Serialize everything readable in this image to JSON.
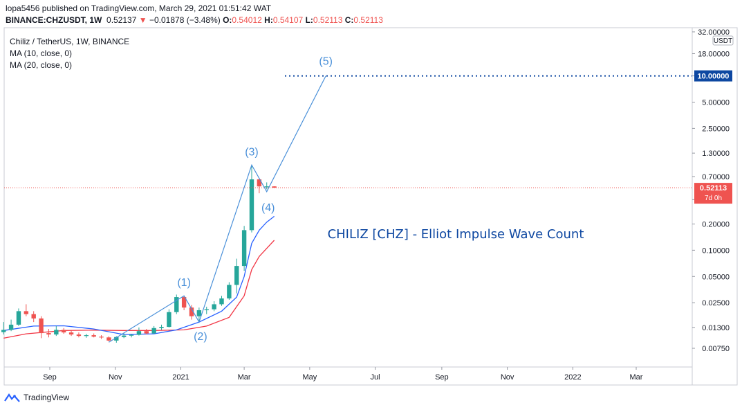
{
  "header": {
    "published": "lopa5456 published on TradingView.com, March 29, 2021 01:51:42 WAT",
    "symbol": "BINANCE:CHZUSDT, 1W",
    "last": "0.52137",
    "change": "−0.01878 (−3.48%)",
    "o_label": "O:",
    "o": "0.54012",
    "h_label": "H:",
    "h": "0.54107",
    "l_label": "L:",
    "l": "0.52113",
    "c_label": "C:",
    "c": "0.52113"
  },
  "legend": {
    "title": "Chiliz / TetherUS, 1W, BINANCE",
    "ma10": "MA (10, close, 0)",
    "ma20": "MA (20, close, 0)"
  },
  "footer": {
    "brand": "TradingView"
  },
  "colors": {
    "up": "#26a69a",
    "down": "#ef5350",
    "wave": "#4a90d9",
    "ma10": "#2962ff",
    "ma20": "#f23645",
    "annotation": "#0d47a1",
    "target": "#0d47a1"
  },
  "chart_data": {
    "type": "candlestick",
    "title": "CHILIZ [CHZ] - Elliot Impulse Wave Count",
    "scale": "log",
    "y_unit": "USDT",
    "y_ticks": [
      "32.00000",
      "18.00000",
      "10.00000",
      "5.00000",
      "2.50000",
      "1.30000",
      "0.70000",
      "0.38000",
      "0.20000",
      "0.10000",
      "0.05000",
      "0.02500",
      "0.01300",
      "0.00750"
    ],
    "x_ticks": [
      "Sep",
      "Nov",
      "2021",
      "Mar",
      "May",
      "Jul",
      "Sep",
      "Nov",
      "2022",
      "Mar"
    ],
    "x_tick_dates": [
      "2020-09-01",
      "2020-11-01",
      "2021-01-01",
      "2021-03-01",
      "2021-05-01",
      "2021-07-01",
      "2021-09-01",
      "2021-11-01",
      "2022-01-01",
      "2022-03-01"
    ],
    "candles": [
      {
        "date": "2020-07-20",
        "o": 0.0115,
        "h": 0.015,
        "l": 0.0108,
        "c": 0.0122
      },
      {
        "date": "2020-07-27",
        "o": 0.0122,
        "h": 0.016,
        "l": 0.0118,
        "c": 0.014
      },
      {
        "date": "2020-08-03",
        "o": 0.014,
        "h": 0.0215,
        "l": 0.0135,
        "c": 0.02
      },
      {
        "date": "2020-08-10",
        "o": 0.02,
        "h": 0.024,
        "l": 0.0175,
        "c": 0.0185
      },
      {
        "date": "2020-08-17",
        "o": 0.0185,
        "h": 0.02,
        "l": 0.015,
        "c": 0.0165
      },
      {
        "date": "2020-08-24",
        "o": 0.0165,
        "h": 0.0175,
        "l": 0.0098,
        "c": 0.0112
      },
      {
        "date": "2020-08-31",
        "o": 0.0112,
        "h": 0.0125,
        "l": 0.01,
        "c": 0.0108
      },
      {
        "date": "2020-09-07",
        "o": 0.0108,
        "h": 0.0135,
        "l": 0.0104,
        "c": 0.0122
      },
      {
        "date": "2020-09-14",
        "o": 0.0122,
        "h": 0.0128,
        "l": 0.011,
        "c": 0.0114
      },
      {
        "date": "2020-09-21",
        "o": 0.0114,
        "h": 0.012,
        "l": 0.0104,
        "c": 0.0108
      },
      {
        "date": "2020-09-28",
        "o": 0.0108,
        "h": 0.0114,
        "l": 0.01,
        "c": 0.0104
      },
      {
        "date": "2020-10-05",
        "o": 0.0104,
        "h": 0.011,
        "l": 0.0099,
        "c": 0.0106
      },
      {
        "date": "2020-10-12",
        "o": 0.0106,
        "h": 0.0111,
        "l": 0.01,
        "c": 0.0102
      },
      {
        "date": "2020-10-19",
        "o": 0.0102,
        "h": 0.0106,
        "l": 0.0096,
        "c": 0.01
      },
      {
        "date": "2020-10-26",
        "o": 0.01,
        "h": 0.0103,
        "l": 0.009,
        "c": 0.0092
      },
      {
        "date": "2020-11-02",
        "o": 0.0092,
        "h": 0.0103,
        "l": 0.0087,
        "c": 0.0101
      },
      {
        "date": "2020-11-09",
        "o": 0.0101,
        "h": 0.0112,
        "l": 0.0098,
        "c": 0.0105
      },
      {
        "date": "2020-11-16",
        "o": 0.0105,
        "h": 0.011,
        "l": 0.01,
        "c": 0.0107
      },
      {
        "date": "2020-11-23",
        "o": 0.0107,
        "h": 0.013,
        "l": 0.0105,
        "c": 0.0118
      },
      {
        "date": "2020-11-30",
        "o": 0.0118,
        "h": 0.0125,
        "l": 0.0108,
        "c": 0.0111
      },
      {
        "date": "2020-12-07",
        "o": 0.0111,
        "h": 0.0135,
        "l": 0.011,
        "c": 0.0128
      },
      {
        "date": "2020-12-14",
        "o": 0.0128,
        "h": 0.014,
        "l": 0.0122,
        "c": 0.0132
      },
      {
        "date": "2020-12-21",
        "o": 0.0132,
        "h": 0.021,
        "l": 0.013,
        "c": 0.0195
      },
      {
        "date": "2020-12-28",
        "o": 0.0195,
        "h": 0.031,
        "l": 0.0185,
        "c": 0.029
      },
      {
        "date": "2021-01-04",
        "o": 0.029,
        "h": 0.03,
        "l": 0.0205,
        "c": 0.022
      },
      {
        "date": "2021-01-11",
        "o": 0.022,
        "h": 0.0235,
        "l": 0.016,
        "c": 0.0175
      },
      {
        "date": "2021-01-18",
        "o": 0.0175,
        "h": 0.022,
        "l": 0.015,
        "c": 0.0205
      },
      {
        "date": "2021-01-25",
        "o": 0.0205,
        "h": 0.0225,
        "l": 0.0185,
        "c": 0.021
      },
      {
        "date": "2021-02-01",
        "o": 0.021,
        "h": 0.026,
        "l": 0.02,
        "c": 0.024
      },
      {
        "date": "2021-02-08",
        "o": 0.024,
        "h": 0.03,
        "l": 0.023,
        "c": 0.028
      },
      {
        "date": "2021-02-15",
        "o": 0.028,
        "h": 0.043,
        "l": 0.027,
        "c": 0.04
      },
      {
        "date": "2021-02-22",
        "o": 0.04,
        "h": 0.08,
        "l": 0.032,
        "c": 0.066
      },
      {
        "date": "2021-03-01",
        "o": 0.066,
        "h": 0.19,
        "l": 0.058,
        "c": 0.17
      },
      {
        "date": "2021-03-08",
        "o": 0.17,
        "h": 0.95,
        "l": 0.16,
        "c": 0.65
      },
      {
        "date": "2021-03-15",
        "o": 0.65,
        "h": 0.67,
        "l": 0.45,
        "c": 0.54
      },
      {
        "date": "2021-03-22",
        "o": 0.54,
        "h": 0.6,
        "l": 0.5,
        "c": 0.54
      },
      {
        "date": "2021-03-29",
        "o": 0.54012,
        "h": 0.54107,
        "l": 0.52113,
        "c": 0.52113
      }
    ],
    "ma10": [
      {
        "date": "2020-07-20",
        "v": 0.012
      },
      {
        "date": "2020-08-17",
        "v": 0.0135
      },
      {
        "date": "2020-09-14",
        "v": 0.0136
      },
      {
        "date": "2020-10-12",
        "v": 0.0125
      },
      {
        "date": "2020-11-09",
        "v": 0.0108
      },
      {
        "date": "2020-12-07",
        "v": 0.011
      },
      {
        "date": "2020-12-28",
        "v": 0.0122
      },
      {
        "date": "2021-01-18",
        "v": 0.015
      },
      {
        "date": "2021-02-08",
        "v": 0.02
      },
      {
        "date": "2021-02-22",
        "v": 0.029
      },
      {
        "date": "2021-03-01",
        "v": 0.05
      },
      {
        "date": "2021-03-08",
        "v": 0.12
      },
      {
        "date": "2021-03-15",
        "v": 0.17
      },
      {
        "date": "2021-03-22",
        "v": 0.21
      },
      {
        "date": "2021-03-29",
        "v": 0.245
      }
    ],
    "ma20": [
      {
        "date": "2020-07-20",
        "v": 0.0098
      },
      {
        "date": "2020-08-10",
        "v": 0.011
      },
      {
        "date": "2020-09-14",
        "v": 0.012
      },
      {
        "date": "2020-10-12",
        "v": 0.0121
      },
      {
        "date": "2020-11-09",
        "v": 0.012
      },
      {
        "date": "2020-12-07",
        "v": 0.012
      },
      {
        "date": "2021-01-04",
        "v": 0.0122
      },
      {
        "date": "2021-01-25",
        "v": 0.0135
      },
      {
        "date": "2021-02-15",
        "v": 0.017
      },
      {
        "date": "2021-03-01",
        "v": 0.03
      },
      {
        "date": "2021-03-08",
        "v": 0.06
      },
      {
        "date": "2021-03-15",
        "v": 0.085
      },
      {
        "date": "2021-03-22",
        "v": 0.105
      },
      {
        "date": "2021-03-29",
        "v": 0.13
      }
    ],
    "wave_points": [
      {
        "label": "",
        "date": "2020-10-26",
        "price": 0.0088
      },
      {
        "label": "(1)",
        "date": "2021-01-04",
        "price": 0.03
      },
      {
        "label": "(2)",
        "date": "2021-01-18",
        "price": 0.015
      },
      {
        "label": "(3)",
        "date": "2021-03-08",
        "price": 0.95
      },
      {
        "label": "(4)",
        "date": "2021-03-22",
        "price": 0.47
      },
      {
        "label": "(5)",
        "date": "2021-05-16",
        "price": 10.0
      }
    ],
    "target_price": "10.00000",
    "current_price": "0.52113",
    "countdown": "7d 0h"
  }
}
